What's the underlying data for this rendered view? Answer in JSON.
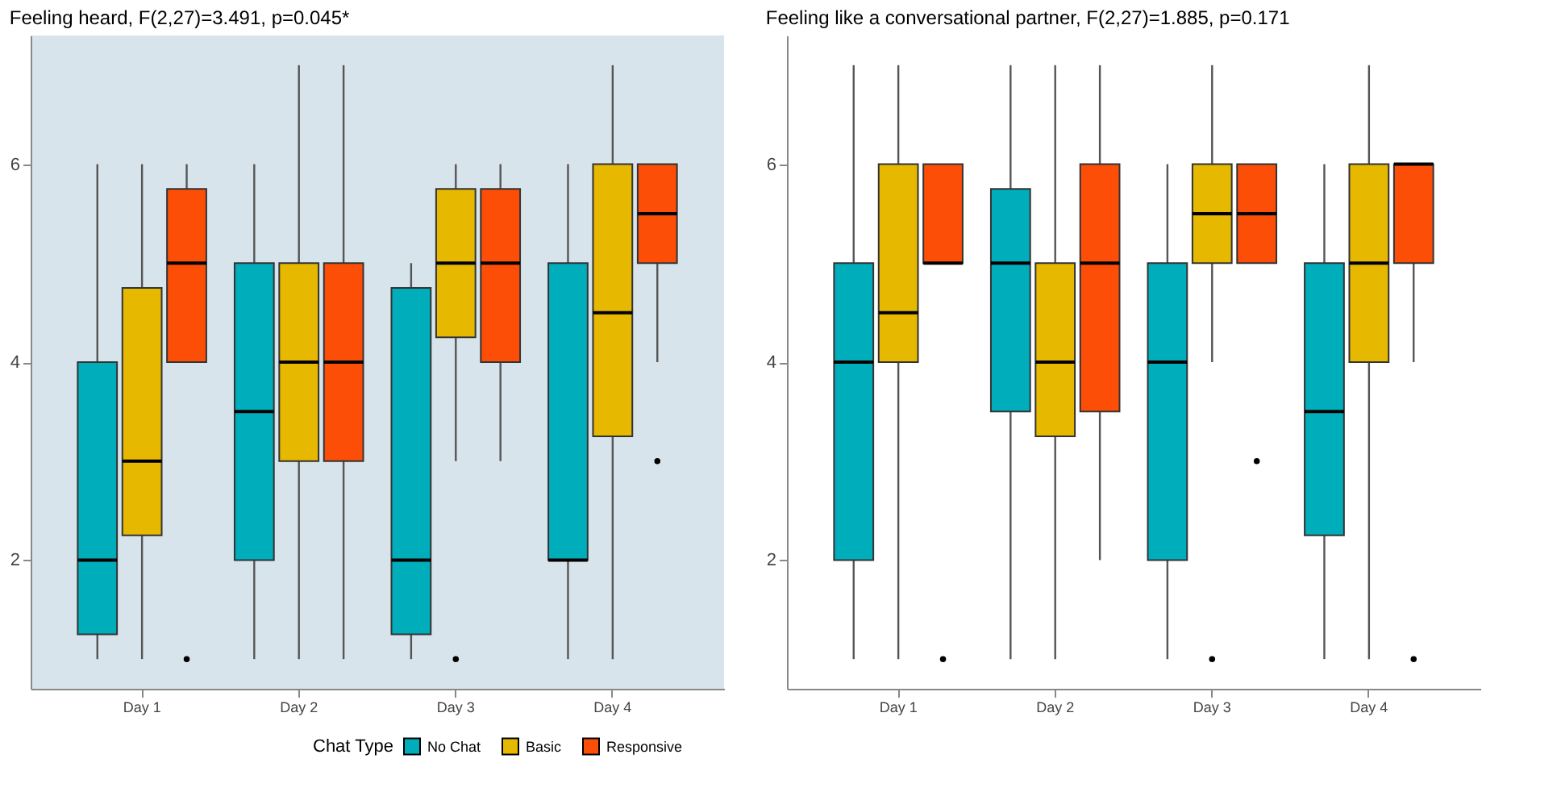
{
  "chart_data": [
    {
      "type": "box",
      "title": "Feeling heard, F(2,27)=3.491, p=0.045*",
      "categories": [
        "Day 1",
        "Day 2",
        "Day 3",
        "Day 4"
      ],
      "ylim": [
        0.7,
        7.3
      ],
      "yticks": [
        2,
        4,
        6
      ],
      "grid": false,
      "legend": "bottom",
      "legend_title": "Chat Type",
      "series": [
        {
          "name": "No Chat",
          "color": "#00adba",
          "boxes": [
            {
              "low": 1,
              "q1": 1.25,
              "median": 2,
              "q3": 4,
              "high": 6
            },
            {
              "low": 1,
              "q1": 2,
              "median": 3.5,
              "q3": 5,
              "high": 6
            },
            {
              "low": 1,
              "q1": 1.25,
              "median": 2,
              "q3": 4.75,
              "high": 5
            },
            {
              "low": 1,
              "q1": 2,
              "median": 2,
              "q3": 5,
              "high": 6
            }
          ]
        },
        {
          "name": "Basic",
          "color": "#e6b800",
          "boxes": [
            {
              "low": 1,
              "q1": 2.25,
              "median": 3,
              "q3": 4.75,
              "high": 6
            },
            {
              "low": 1,
              "q1": 3,
              "median": 4,
              "q3": 5,
              "high": 7
            },
            {
              "low": 3,
              "q1": 4.25,
              "median": 5,
              "q3": 5.75,
              "high": 6,
              "outliers": [
                1
              ]
            },
            {
              "low": 1,
              "q1": 3.25,
              "median": 4.5,
              "q3": 6,
              "high": 7
            }
          ]
        },
        {
          "name": "Responsive",
          "color": "#fc4e07",
          "boxes": [
            {
              "low": 4,
              "q1": 4,
              "median": 5,
              "q3": 5.75,
              "high": 6,
              "outliers": [
                1
              ]
            },
            {
              "low": 1,
              "q1": 3,
              "median": 4,
              "q3": 5,
              "high": 7
            },
            {
              "low": 3,
              "q1": 4,
              "median": 5,
              "q3": 5.75,
              "high": 6
            },
            {
              "low": 4,
              "q1": 5,
              "median": 5.5,
              "q3": 6,
              "high": 6,
              "outliers": [
                3
              ]
            }
          ]
        }
      ]
    },
    {
      "type": "box",
      "title": "Feeling like a conversational partner, F(2,27)=1.885, p=0.171",
      "categories": [
        "Day 1",
        "Day 2",
        "Day 3",
        "Day 4"
      ],
      "ylim": [
        0.7,
        7.3
      ],
      "yticks": [
        2,
        4,
        6
      ],
      "grid": false,
      "series": [
        {
          "color": "#00adba",
          "boxes": [
            {
              "low": 1,
              "q1": 2,
              "median": 4,
              "q3": 5,
              "high": 7
            },
            {
              "low": 1,
              "q1": 3.5,
              "median": 5,
              "q3": 5.75,
              "high": 7
            },
            {
              "low": 1,
              "q1": 2,
              "median": 4,
              "q3": 5,
              "high": 6
            },
            {
              "low": 1,
              "q1": 2.25,
              "median": 3.5,
              "q3": 5,
              "high": 6
            }
          ]
        },
        {
          "color": "#e6b800",
          "boxes": [
            {
              "low": 1,
              "q1": 4,
              "median": 4.5,
              "q3": 6,
              "high": 7
            },
            {
              "low": 1,
              "q1": 3.25,
              "median": 4,
              "q3": 5,
              "high": 7
            },
            {
              "low": 4,
              "q1": 5,
              "median": 5.5,
              "q3": 6,
              "high": 7,
              "outliers": [
                1
              ]
            },
            {
              "low": 1,
              "q1": 4,
              "median": 5,
              "q3": 6,
              "high": 7
            }
          ]
        },
        {
          "color": "#fc4e07",
          "boxes": [
            {
              "low": 5,
              "q1": 5,
              "median": 5,
              "q3": 6,
              "high": 6,
              "outliers": [
                1
              ]
            },
            {
              "low": 2,
              "q1": 3.5,
              "median": 5,
              "q3": 6,
              "high": 7
            },
            {
              "low": 5,
              "q1": 5,
              "median": 5.5,
              "q3": 6,
              "high": 6,
              "outliers": [
                3
              ]
            },
            {
              "low": 4,
              "q1": 5,
              "median": 6,
              "q3": 6,
              "high": 6,
              "outliers": [
                1
              ]
            }
          ]
        }
      ]
    }
  ]
}
